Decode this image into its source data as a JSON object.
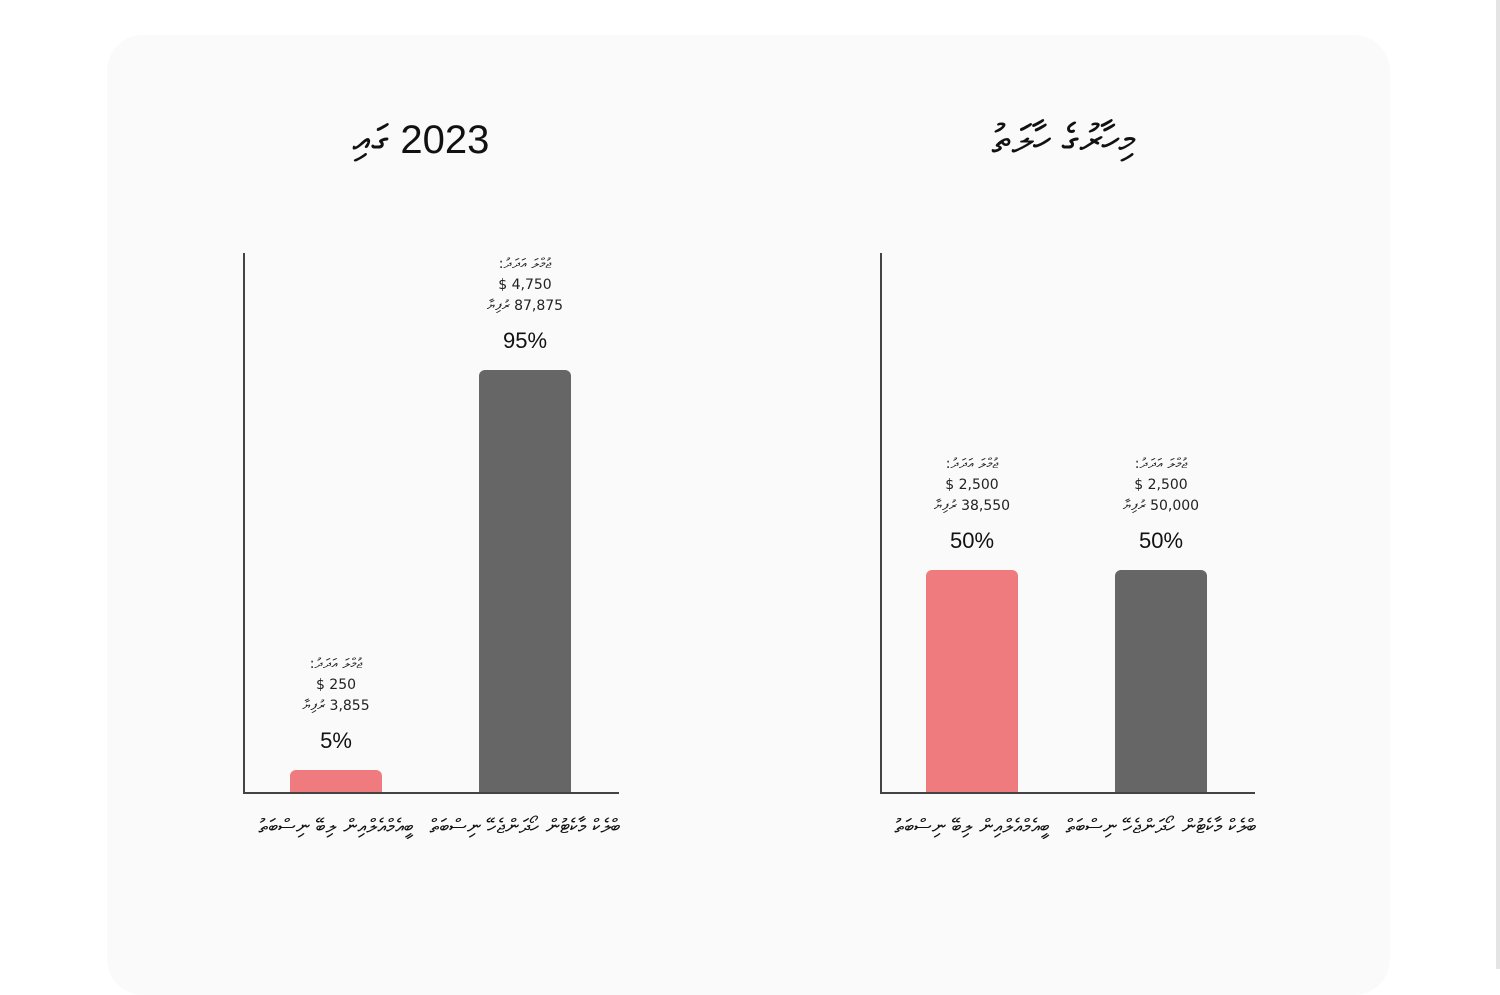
{
  "colors": {
    "pink": "#f07b7e",
    "gray": "#666666"
  },
  "chart_data": [
    {
      "type": "bar",
      "title": "2023 ގައި",
      "ylim": [
        0,
        100
      ],
      "unit": "%",
      "categories": [
        "ބީއެމްއެލްއިން ލިބޭ ނިސްބަތު",
        "ބްލެކް މާކެޓުން ހޯދަންޖެހޭ ނިސްބަތް"
      ],
      "values": [
        5,
        95
      ],
      "value_labels": [
        "5%",
        "95%"
      ],
      "total_label": "ޖުމްލަ އަދަދު:",
      "usd": [
        "$ 250",
        "$ 4,750"
      ],
      "mvr": [
        "3,855 ރުފިޔާ",
        "87,875 ރުފިޔާ"
      ]
    },
    {
      "type": "bar",
      "title": "މިހާރުގެ ހާލަތު",
      "ylim": [
        0,
        100
      ],
      "unit": "%",
      "categories": [
        "ބީއެމްއެލްއިން ލިބޭ ނިސްބަތު",
        "ބްލެކް މާކެޓުން ހޯދަންޖެހޭ ނިސްބަތް"
      ],
      "values": [
        50,
        50
      ],
      "value_labels": [
        "50%",
        "50%"
      ],
      "total_label": "ޖުމްލަ އަދަދު:",
      "usd": [
        "$ 2,500",
        "$ 2,500"
      ],
      "mvr": [
        "38,550 ރުފިޔާ",
        "50,000 ރުފިޔާ"
      ]
    }
  ]
}
